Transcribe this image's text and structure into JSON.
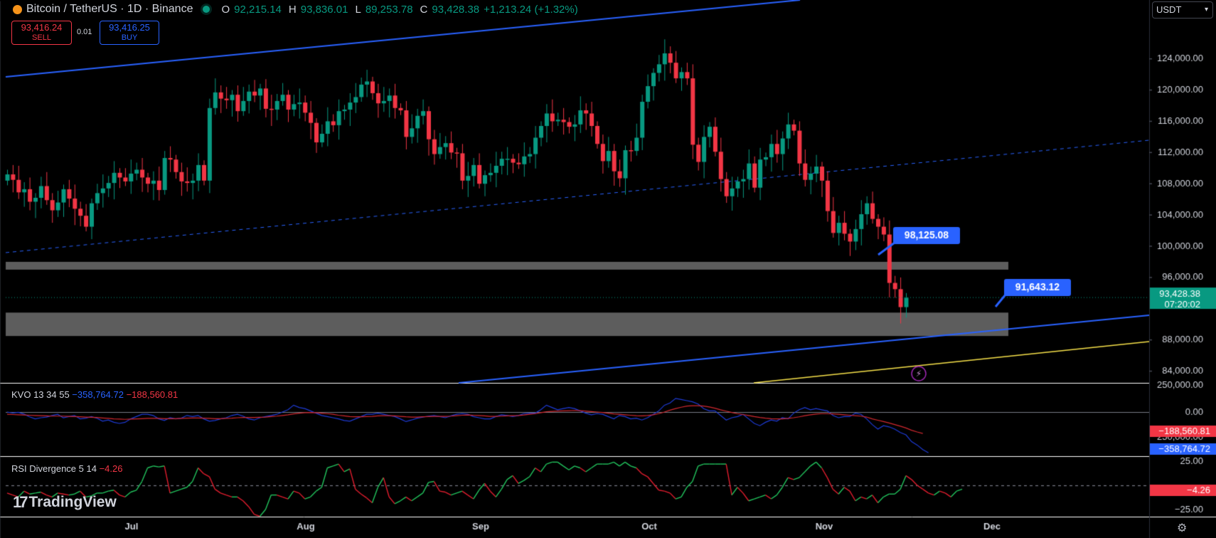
{
  "header": {
    "symbol": "Bitcoin / TetherUS · 1D · Binance",
    "open_label": "O",
    "open": "92,215.14",
    "high_label": "H",
    "high": "93,836.01",
    "low_label": "L",
    "low": "89,253.78",
    "close_label": "C",
    "close": "93,428.38",
    "change": "+1,213.24 (+1.32%)"
  },
  "trade": {
    "sell_price": "93,416.24",
    "sell_label": "SELL",
    "spread": "0.01",
    "buy_price": "93,416.25",
    "buy_label": "BUY"
  },
  "currency_select": "USDT",
  "indicators": {
    "kvo": {
      "name": "KVO 13 34 55",
      "value1": "−358,764.72",
      "value2": "−188,560.81"
    },
    "rsi": {
      "name": "RSI Divergence 5 14",
      "value": "−4.26"
    }
  },
  "brand": "TradingView",
  "colors": {
    "up": "#089981",
    "down": "#f23645",
    "blue": "#2962ff",
    "yellow": "#f5e04a",
    "zone": "#5d5d5d"
  },
  "chart_data": [
    {
      "type": "candlestick",
      "title": "Bitcoin / TetherUS · 1D · Binance",
      "y_axis_ticks": [
        "124,000.00",
        "120,000.00",
        "116,000.00",
        "112,000.00",
        "108,000.00",
        "104,000.00",
        "100,000.00",
        "96,000.00",
        "88,000.00",
        "84,000.00"
      ],
      "x_axis_ticks": [
        "Jul",
        "Aug",
        "Sep",
        "Oct",
        "Nov",
        "Dec"
      ],
      "ylim": [
        82500,
        128800
      ],
      "last_price": "93,428.38",
      "countdown": "07:20:02",
      "annotations": [
        {
          "text": "98,125.08",
          "price": 98125.08,
          "date_index": 148
        },
        {
          "text": "91,643.12",
          "price": 91643.12,
          "date_index": 160
        }
      ],
      "zones": [
        {
          "from": 97000,
          "to": 98000
        },
        {
          "from": 88500,
          "to": 91500
        }
      ],
      "candles_close": [
        109200,
        108500,
        106900,
        107300,
        105700,
        106200,
        107700,
        105900,
        104600,
        105600,
        107300,
        106100,
        104800,
        103900,
        102500,
        105500,
        106800,
        107400,
        108100,
        109400,
        108800,
        108300,
        109300,
        109800,
        108800,
        108000,
        108400,
        107200,
        111300,
        111100,
        109500,
        108300,
        108100,
        108400,
        110400,
        108400,
        117700,
        119700,
        118900,
        118700,
        119400,
        117300,
        118600,
        119800,
        119300,
        120200,
        117600,
        117500,
        118600,
        119400,
        117500,
        118200,
        118400,
        117100,
        115800,
        113300,
        114400,
        116000,
        115500,
        117300,
        117500,
        118400,
        119100,
        120700,
        121100,
        119600,
        118300,
        118600,
        119300,
        117700,
        117400,
        114000,
        115100,
        116700,
        117300,
        113700,
        111800,
        112700,
        113200,
        112000,
        111900,
        108400,
        109000,
        110400,
        108000,
        109100,
        109400,
        110300,
        111200,
        111200,
        110700,
        110500,
        111500,
        111800,
        113900,
        115400,
        117000,
        116000,
        116200,
        115900,
        115300,
        115600,
        117400,
        117000,
        115400,
        113100,
        110900,
        112200,
        109600,
        108700,
        112300,
        112200,
        113900,
        118500,
        120500,
        122200,
        123300,
        124700,
        123500,
        121500,
        122300,
        121500,
        113000,
        110800,
        114000,
        115300,
        112100,
        108600,
        106400,
        107400,
        108300,
        108600,
        110600,
        107500,
        111100,
        111400,
        113100,
        111800,
        113800,
        115600,
        114800,
        110600,
        108500,
        109300,
        110200,
        108400,
        104500,
        101700,
        103000,
        101600,
        100600,
        102200,
        104100,
        105500,
        103500,
        102500,
        101500,
        95300,
        94500,
        92200,
        93400
      ],
      "rsi_series": [
        -8,
        -10,
        -12,
        -6,
        -9,
        -8,
        -7,
        -10,
        -12,
        -8,
        -9,
        -10,
        -9,
        -6,
        -12,
        -11,
        -8,
        -8,
        -6,
        -5,
        -10,
        -12,
        -7,
        -5,
        4,
        18,
        20,
        19,
        20,
        -8,
        -6,
        -4,
        -2,
        4,
        18,
        12,
        9,
        -4,
        -8,
        -10,
        -12,
        -12,
        -16,
        -22,
        -30,
        -32,
        -25,
        -10,
        -10,
        -12,
        -14,
        -6,
        -8,
        -14,
        -12,
        -6,
        -2,
        18,
        20,
        22,
        14,
        17,
        -4,
        -9,
        -13,
        -18,
        -2,
        8,
        -12,
        -19,
        -16,
        -12,
        -16,
        -12,
        -8,
        3,
        4,
        -6,
        -7,
        -10,
        -8,
        -6,
        -10,
        -14,
        -5,
        2,
        -6,
        -12,
        -4,
        6,
        10,
        2,
        5,
        9,
        18,
        14,
        22,
        24,
        24,
        20,
        16,
        20,
        18,
        14,
        18,
        22,
        22,
        22,
        24,
        20,
        24,
        20,
        18,
        12,
        9,
        2,
        -5,
        -6,
        -8,
        -14,
        -12,
        -2,
        4,
        20,
        22,
        22,
        22,
        22,
        22,
        -10,
        -2,
        -8,
        -16,
        -14,
        -12,
        -10,
        -14,
        -10,
        -2,
        8,
        6,
        8,
        14,
        20,
        24,
        18,
        8,
        -4,
        -9,
        -2,
        -6,
        -16,
        -12,
        -14,
        -10,
        -18,
        -12,
        -9,
        -9,
        -4,
        10,
        6,
        0,
        -4,
        -8,
        -10,
        -6,
        -8,
        -12,
        -6,
        -4
      ],
      "kvo_fast": [
        0,
        -8,
        -2,
        -18,
        -42,
        -60,
        -50,
        -44,
        -30,
        -20,
        -50,
        -40,
        -30,
        -60,
        -54,
        -40,
        -55,
        -80,
        -70,
        -90,
        -100,
        -90,
        -60,
        -40,
        -20,
        -20,
        -30,
        -60,
        -74,
        -50,
        -60,
        -54,
        -30,
        -40,
        -30,
        -60,
        -80,
        -74,
        -60,
        -50,
        -30,
        -20,
        -36,
        -60,
        -70,
        -50,
        -40,
        -30,
        -20,
        0,
        20,
        60,
        40,
        30,
        10,
        -10,
        -30,
        -40,
        -50,
        -60,
        -74,
        -80,
        -60,
        -40,
        -20,
        -20,
        -10,
        -20,
        -30,
        -40,
        -60,
        -84,
        -70,
        -54,
        -44,
        -36,
        -30,
        -40,
        -50,
        -34,
        -20,
        -14,
        -20,
        -40,
        -50,
        -60,
        -60,
        -40,
        -24,
        -30,
        -40,
        -30,
        -14,
        -10,
        -10,
        20,
        60,
        40,
        20,
        30,
        40,
        30,
        10,
        -10,
        -24,
        -14,
        -20,
        -40,
        -60,
        -30,
        -40,
        -60,
        -54,
        -70,
        -50,
        -20,
        10,
        60,
        80,
        120,
        110,
        100,
        90,
        70,
        30,
        10,
        10,
        -30,
        -70,
        -50,
        -40,
        -20,
        -60,
        -100,
        -120,
        -90,
        -70,
        -80,
        -50,
        -60,
        -10,
        20,
        40,
        20,
        30,
        20,
        10,
        -30,
        -50,
        -40,
        -40,
        -10,
        -20,
        -60,
        -110,
        -150,
        -120,
        -130,
        -150,
        -180,
        -200,
        -260,
        -290,
        -330,
        -358
      ],
      "kvo_slow": [
        -20,
        -22,
        -24,
        -26,
        -28,
        -30,
        -32,
        -34,
        -36,
        -36,
        -36,
        -38,
        -40,
        -42,
        -44,
        -46,
        -48,
        -52,
        -56,
        -60,
        -62,
        -64,
        -62,
        -60,
        -58,
        -56,
        -55,
        -56,
        -58,
        -58,
        -58,
        -56,
        -54,
        -52,
        -52,
        -54,
        -56,
        -58,
        -58,
        -56,
        -54,
        -50,
        -48,
        -48,
        -48,
        -46,
        -44,
        -40,
        -36,
        -30,
        -24,
        -16,
        -10,
        -6,
        -4,
        -6,
        -10,
        -14,
        -20,
        -28,
        -34,
        -40,
        -42,
        -42,
        -40,
        -38,
        -34,
        -32,
        -32,
        -34,
        -38,
        -42,
        -44,
        -44,
        -42,
        -40,
        -38,
        -38,
        -38,
        -36,
        -32,
        -28,
        -26,
        -28,
        -30,
        -34,
        -38,
        -38,
        -36,
        -34,
        -32,
        -30,
        -26,
        -20,
        -14,
        -6,
        2,
        6,
        8,
        10,
        12,
        14,
        12,
        8,
        4,
        0,
        -4,
        -10,
        -16,
        -20,
        -24,
        -28,
        -32,
        -34,
        -30,
        -24,
        -14,
        0,
        16,
        30,
        42,
        52,
        56,
        56,
        52,
        44,
        34,
        20,
        8,
        -4,
        -14,
        -22,
        -30,
        -40,
        -48,
        -54,
        -58,
        -60,
        -60,
        -56,
        -50,
        -42,
        -32,
        -24,
        -18,
        -14,
        -14,
        -16,
        -20,
        -24,
        -28,
        -32,
        -36,
        -44,
        -60,
        -72,
        -84,
        -96,
        -110,
        -124,
        -140,
        -160,
        -175,
        -188
      ]
    }
  ]
}
